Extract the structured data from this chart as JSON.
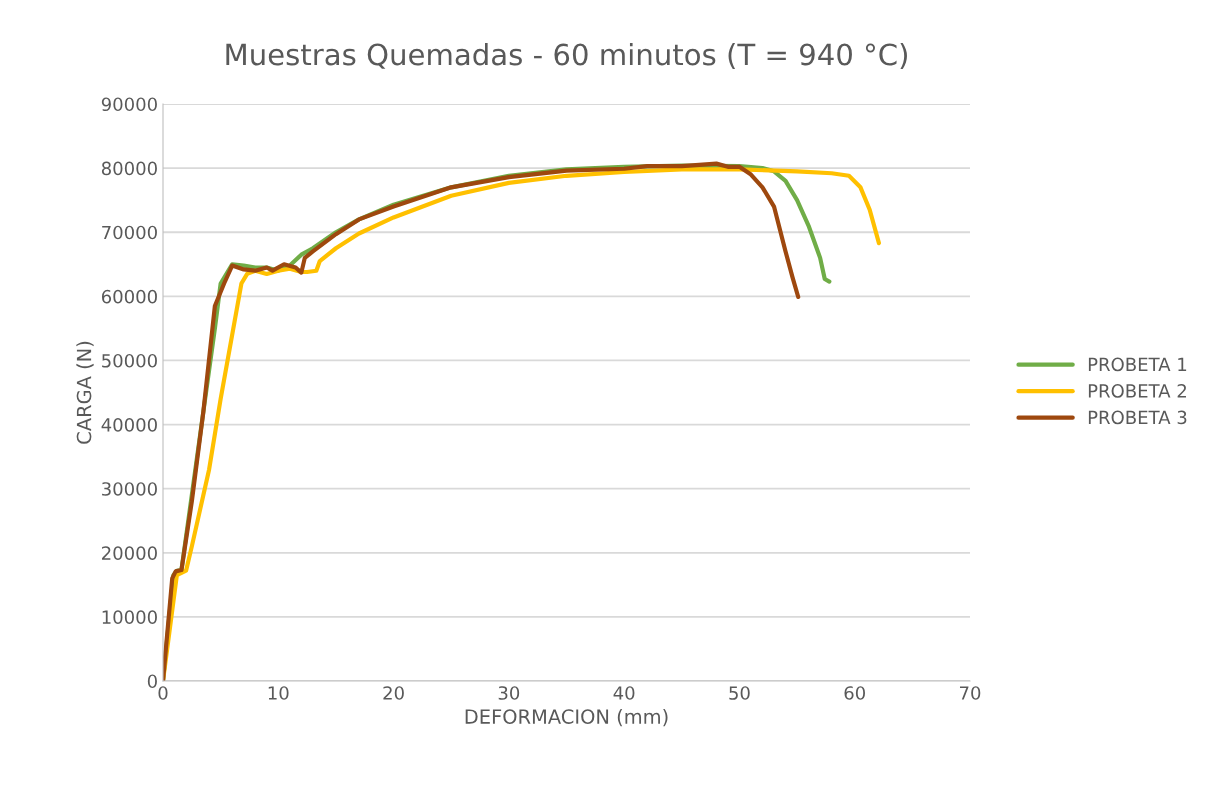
{
  "chart_data": {
    "type": "line",
    "title": "Muestras Quemadas - 60 minutos (T = 940 °C)",
    "xlabel": "DEFORMACION (mm)",
    "ylabel": "CARGA (N)",
    "xlim": [
      0,
      70
    ],
    "xticks": [
      0,
      10,
      20,
      30,
      40,
      50,
      60,
      70
    ],
    "ylim": [
      0,
      90000
    ],
    "yticks": [
      0,
      10000,
      20000,
      30000,
      40000,
      50000,
      60000,
      70000,
      80000,
      90000
    ],
    "grid": "y",
    "legend": "right",
    "marker": "none",
    "line_style": "solid",
    "series": [
      {
        "name": "PROBETA 1",
        "color": "#70ad47",
        "x": [
          0,
          0.9,
          1.2,
          1.6,
          4.5,
          5.0,
          6,
          7,
          8,
          9,
          10,
          11,
          12,
          13,
          15,
          17,
          20,
          25,
          30,
          35,
          40,
          45,
          50,
          52,
          53,
          54,
          55,
          56,
          57,
          57.4,
          57.8
        ],
        "values": [
          0,
          16500,
          17200,
          17300,
          55000,
          62000,
          65000,
          64800,
          64500,
          64500,
          64000,
          64800,
          66500,
          67500,
          70000,
          72000,
          74300,
          77000,
          78800,
          79800,
          80200,
          80400,
          80300,
          80000,
          79500,
          78000,
          75000,
          71000,
          66000,
          62700,
          62300
        ]
      },
      {
        "name": "PROBETA 2",
        "color": "#ffc000",
        "x": [
          0,
          1.2,
          2,
          2.5,
          4,
          5,
          6,
          6.8,
          7.3,
          8,
          9,
          10,
          11,
          12,
          12.5,
          13.3,
          13.6,
          15,
          17,
          20,
          25,
          30,
          35,
          40,
          45,
          50,
          55,
          58,
          59.5,
          60.5,
          61.3,
          62.1
        ],
        "values": [
          0,
          16500,
          17200,
          21000,
          33000,
          44000,
          54000,
          62000,
          63500,
          64000,
          63500,
          64000,
          64300,
          63800,
          63800,
          64000,
          65500,
          67500,
          69800,
          72300,
          75700,
          77700,
          78800,
          79400,
          79800,
          79800,
          79500,
          79200,
          78800,
          77000,
          73500,
          68300
        ]
      },
      {
        "name": "PROBETA 3",
        "color": "#9e480e",
        "x": [
          0,
          0.8,
          1.1,
          1.6,
          2.5,
          3.5,
          4.5,
          5.3,
          6,
          7,
          8,
          9,
          9.5,
          10.5,
          11.5,
          12,
          12.3,
          13,
          15,
          17,
          20,
          25,
          30,
          35,
          40,
          42,
          45,
          48,
          49,
          50,
          51,
          52,
          53,
          54,
          54.6,
          55.1
        ],
        "values": [
          0,
          16000,
          17100,
          17300,
          28000,
          42000,
          58500,
          62000,
          64800,
          64200,
          64000,
          64500,
          64000,
          65000,
          64500,
          63700,
          66000,
          67000,
          69700,
          72000,
          74000,
          77000,
          78600,
          79600,
          79900,
          80300,
          80300,
          80700,
          80200,
          80200,
          79000,
          77000,
          74000,
          67000,
          63000,
          59900
        ]
      }
    ]
  }
}
